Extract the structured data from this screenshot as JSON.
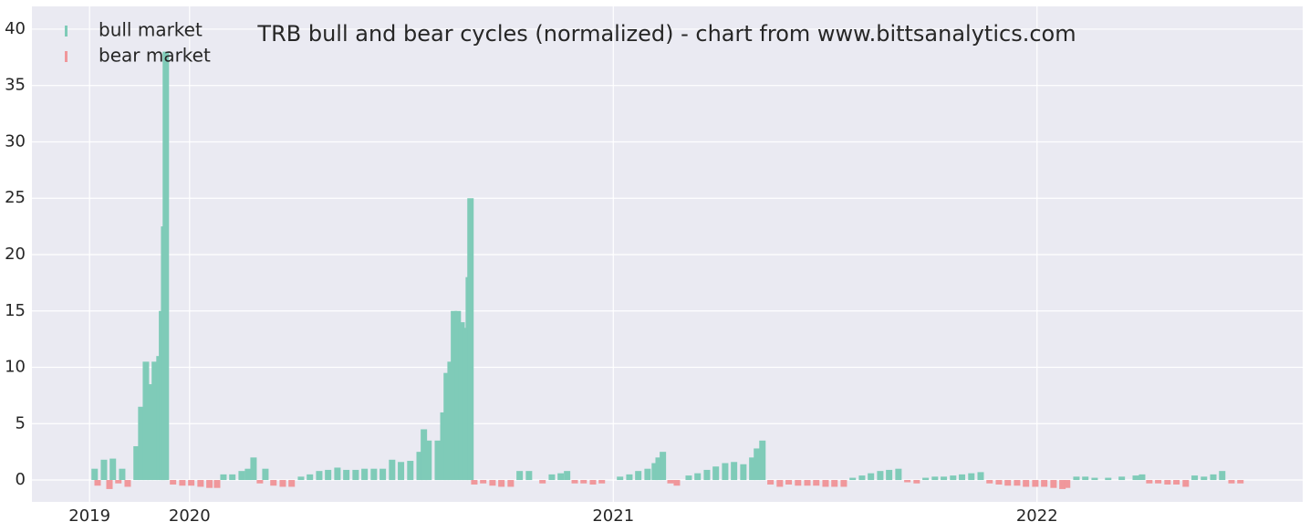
{
  "chart_data": {
    "type": "bar",
    "title": "TRB bull and bear cycles (normalized)  - chart from www.bittsanalytics.com",
    "xlim": [
      2019.628,
      2022.627
    ],
    "xticks": [
      {
        "value": 2019.764,
        "label": "2019"
      },
      2020,
      2021,
      2022
    ],
    "ylim": [
      -1.94,
      42.02
    ],
    "yticks": [
      0,
      5,
      10,
      15,
      20,
      25,
      30,
      35,
      40
    ],
    "grid": true,
    "legend": "upper left",
    "series": [
      {
        "name": "bull market",
        "color": "#7fcbb8",
        "x": [
          2019.776,
          2019.798,
          2019.819,
          2019.841,
          2019.875,
          2019.886,
          2019.897,
          2019.907,
          2019.918,
          2019.929,
          2019.935,
          2019.94,
          2019.944,
          2020.08,
          2020.101,
          2020.123,
          2020.138,
          2020.151,
          2020.179,
          2020.263,
          2020.284,
          2020.306,
          2020.327,
          2020.349,
          2020.37,
          2020.392,
          2020.413,
          2020.435,
          2020.456,
          2020.478,
          2020.499,
          2020.521,
          2020.543,
          2020.553,
          2020.564,
          2020.586,
          2020.599,
          2020.607,
          2020.616,
          2020.624,
          2020.633,
          2020.642,
          2020.65,
          2020.659,
          2020.663,
          2020.779,
          2020.801,
          2020.855,
          2020.876,
          2020.891,
          2021.016,
          2021.038,
          2021.059,
          2021.081,
          2021.098,
          2021.107,
          2021.117,
          2021.178,
          2021.199,
          2021.221,
          2021.242,
          2021.264,
          2021.285,
          2021.307,
          2021.328,
          2021.339,
          2021.352,
          2021.565,
          2021.587,
          2021.608,
          2021.63,
          2021.651,
          2021.673,
          2021.737,
          2021.759,
          2021.78,
          2021.802,
          2021.823,
          2021.845,
          2021.867,
          2022.093,
          2022.114,
          2022.136,
          2022.168,
          2022.2,
          2022.233,
          2022.248,
          2022.372,
          2022.394,
          2022.416,
          2022.437
        ],
        "values": [
          1.0,
          1.8,
          1.9,
          1.0,
          3,
          6.5,
          10.5,
          8.5,
          10.5,
          11,
          15,
          22.5,
          38,
          0.5,
          0.5,
          0.8,
          1.0,
          2.0,
          1.0,
          0.3,
          0.5,
          0.8,
          0.9,
          1.1,
          0.9,
          0.9,
          1.0,
          1.0,
          1.0,
          1.8,
          1.6,
          1.7,
          2.5,
          4.5,
          3.5,
          3.5,
          6,
          9.5,
          10.5,
          15,
          15,
          14,
          13.5,
          18,
          25,
          0.8,
          0.8,
          0.5,
          0.6,
          0.8,
          0.3,
          0.5,
          0.8,
          1.0,
          1.5,
          2,
          2.5,
          0.4,
          0.6,
          0.9,
          1.2,
          1.5,
          1.6,
          1.4,
          2.0,
          2.8,
          3.5,
          0.2,
          0.4,
          0.6,
          0.8,
          0.9,
          1.0,
          0.2,
          0.3,
          0.3,
          0.4,
          0.5,
          0.6,
          0.7,
          0.3,
          0.3,
          0.2,
          0.2,
          0.3,
          0.4,
          0.5,
          0.4,
          0.3,
          0.5,
          0.8
        ]
      },
      {
        "name": "bear market",
        "color": "#f0979b",
        "x": [
          2019.783,
          2019.811,
          2019.832,
          2019.854,
          2019.961,
          2019.983,
          2020.004,
          2020.026,
          2020.047,
          2020.065,
          2020.166,
          2020.198,
          2020.22,
          2020.241,
          2020.672,
          2020.693,
          2020.715,
          2020.736,
          2020.758,
          2020.833,
          2020.909,
          2020.93,
          2020.952,
          2020.973,
          2021.135,
          2021.15,
          2021.371,
          2021.393,
          2021.414,
          2021.436,
          2021.458,
          2021.479,
          2021.501,
          2021.522,
          2021.544,
          2021.694,
          2021.716,
          2021.888,
          2021.91,
          2021.931,
          2021.953,
          2021.974,
          2021.996,
          2022.017,
          2022.039,
          2022.06,
          2022.071,
          2022.265,
          2022.286,
          2022.308,
          2022.329,
          2022.351,
          2022.459,
          2022.48
        ],
        "values": [
          -0.5,
          -0.8,
          -0.3,
          -0.6,
          -0.4,
          -0.5,
          -0.5,
          -0.6,
          -0.7,
          -0.7,
          -0.3,
          -0.5,
          -0.6,
          -0.6,
          -0.4,
          -0.3,
          -0.5,
          -0.6,
          -0.6,
          -0.3,
          -0.3,
          -0.3,
          -0.4,
          -0.3,
          -0.3,
          -0.5,
          -0.4,
          -0.6,
          -0.4,
          -0.5,
          -0.5,
          -0.5,
          -0.6,
          -0.6,
          -0.6,
          -0.2,
          -0.3,
          -0.3,
          -0.4,
          -0.5,
          -0.5,
          -0.6,
          -0.6,
          -0.6,
          -0.7,
          -0.8,
          -0.7,
          -0.3,
          -0.3,
          -0.4,
          -0.4,
          -0.6,
          -0.3,
          -0.3
        ]
      }
    ]
  }
}
